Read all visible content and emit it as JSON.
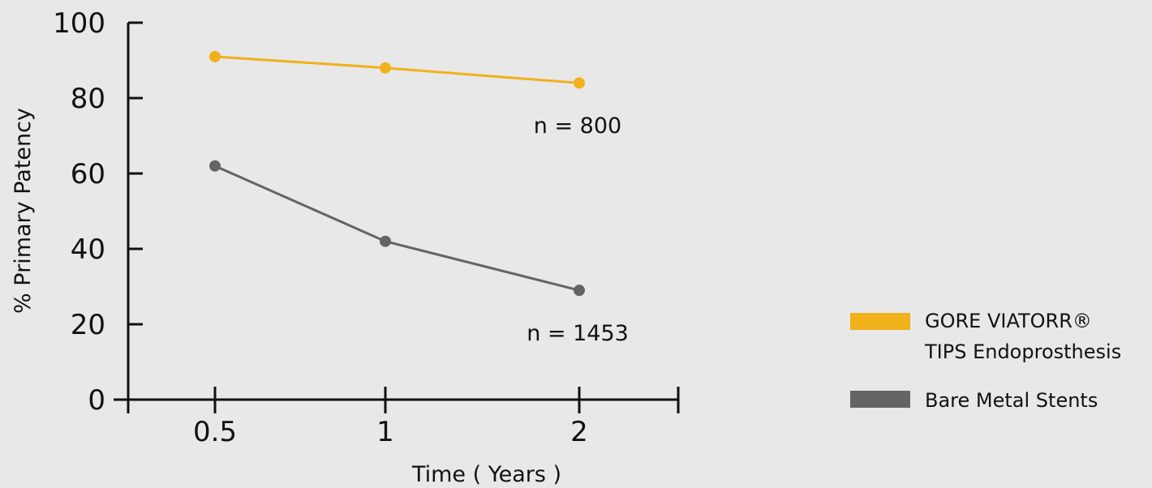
{
  "chart_data": {
    "type": "line",
    "xlabel": "Time ( Years )",
    "ylabel": "% Primary Patency",
    "categories": [
      "0.5",
      "1",
      "2"
    ],
    "ylim": [
      0,
      100
    ],
    "yticks": [
      "0",
      "20",
      "40",
      "60",
      "80",
      "100"
    ],
    "grid": false,
    "legend_position": "right",
    "series": [
      {
        "name": "GORE VIATORR® TIPS Endoprosthesis",
        "legend_lines": [
          "GORE VIATORR®",
          "TIPS Endoprosthesis"
        ],
        "color": "#f0b11a",
        "values": [
          91,
          88,
          84
        ],
        "annotation": "n = 800"
      },
      {
        "name": "Bare Metal Stents",
        "legend_lines": [
          "Bare Metal Stents"
        ],
        "color": "#646464",
        "values": [
          62,
          42,
          29
        ],
        "annotation": "n = 1453"
      }
    ]
  }
}
